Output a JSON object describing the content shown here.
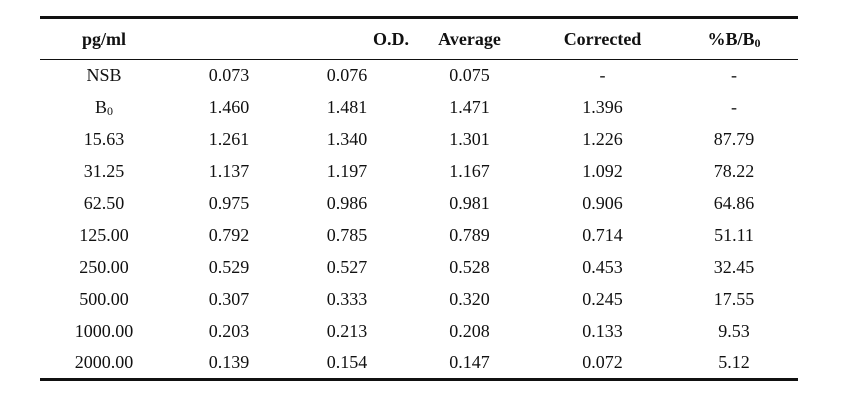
{
  "table": {
    "headers": {
      "conc": "pg/ml",
      "od": "O.D.",
      "average": "Average",
      "corrected": "Corrected",
      "ratio_prefix": "%B/B",
      "ratio_sub": "0"
    },
    "rows": [
      {
        "label": "NSB",
        "label_sub": "",
        "od1": "0.073",
        "od2": "0.076",
        "avg": "0.075",
        "corr": "-",
        "ratio": "-"
      },
      {
        "label": "B",
        "label_sub": "0",
        "od1": "1.460",
        "od2": "1.481",
        "avg": "1.471",
        "corr": "1.396",
        "ratio": "-"
      },
      {
        "label": "15.63",
        "label_sub": "",
        "od1": "1.261",
        "od2": "1.340",
        "avg": "1.301",
        "corr": "1.226",
        "ratio": "87.79"
      },
      {
        "label": "31.25",
        "label_sub": "",
        "od1": "1.137",
        "od2": "1.197",
        "avg": "1.167",
        "corr": "1.092",
        "ratio": "78.22"
      },
      {
        "label": "62.50",
        "label_sub": "",
        "od1": "0.975",
        "od2": "0.986",
        "avg": "0.981",
        "corr": "0.906",
        "ratio": "64.86"
      },
      {
        "label": "125.00",
        "label_sub": "",
        "od1": "0.792",
        "od2": "0.785",
        "avg": "0.789",
        "corr": "0.714",
        "ratio": "51.11"
      },
      {
        "label": "250.00",
        "label_sub": "",
        "od1": "0.529",
        "od2": "0.527",
        "avg": "0.528",
        "corr": "0.453",
        "ratio": "32.45"
      },
      {
        "label": "500.00",
        "label_sub": "",
        "od1": "0.307",
        "od2": "0.333",
        "avg": "0.320",
        "corr": "0.245",
        "ratio": "17.55"
      },
      {
        "label": "1000.00",
        "label_sub": "",
        "od1": "0.203",
        "od2": "0.213",
        "avg": "0.208",
        "corr": "0.133",
        "ratio": "9.53"
      },
      {
        "label": "2000.00",
        "label_sub": "",
        "od1": "0.139",
        "od2": "0.154",
        "avg": "0.147",
        "corr": "0.072",
        "ratio": "5.12"
      }
    ]
  }
}
